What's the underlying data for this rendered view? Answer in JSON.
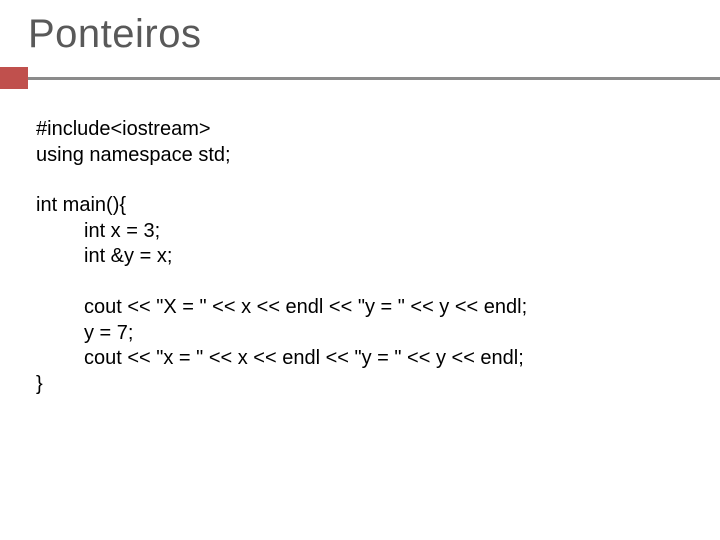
{
  "slide": {
    "title": "Ponteiros",
    "title_color": "#595959",
    "title_fontsize": 40,
    "accent_color": "#c0504d",
    "accent_bar_color": "#8b8b8b",
    "background_color": "#ffffff",
    "code_fontsize": 20,
    "code_color": "#000000",
    "code": {
      "l1": "#include<iostream>",
      "l2": "using namespace std;",
      "l3": "int main(){",
      "l4": "int x = 3;",
      "l5": "int &y = x;",
      "l6": "cout << \"X = \" << x << endl << \"y = \" << y << endl;",
      "l7": "y = 7;",
      "l8": "cout << \"x = \" << x << endl << \"y = \" << y << endl;",
      "l9": "}"
    }
  }
}
